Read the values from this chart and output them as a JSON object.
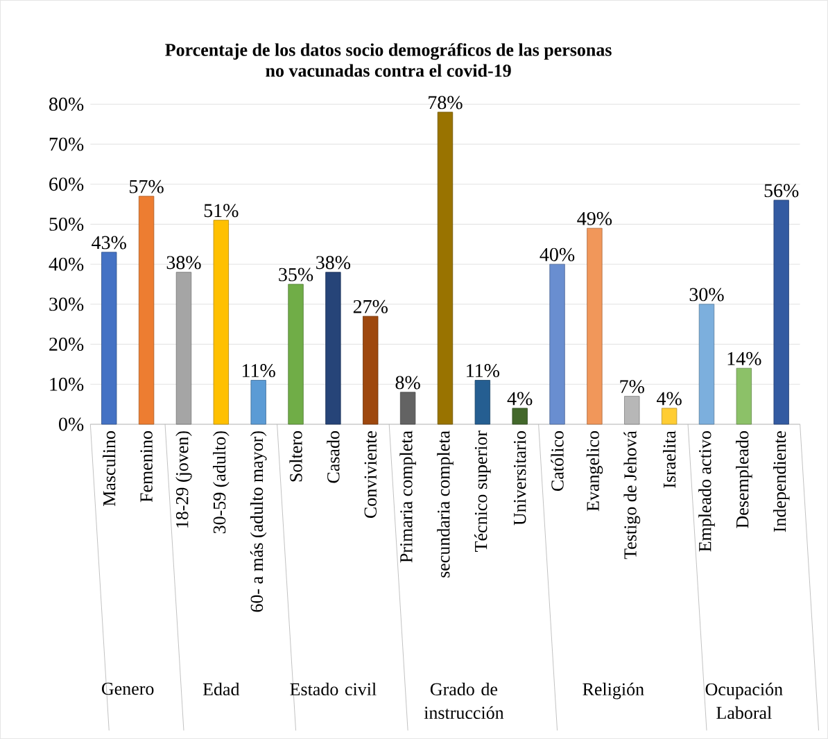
{
  "chart_data": {
    "type": "bar",
    "title": "Porcentaje de los datos socio demográficos de las personas no vacunadas contra el covid-19",
    "categories": [
      "Masculino",
      "Femenino",
      "18-29 (joven)",
      "30-59 (adulto)",
      "60- a más (adulto mayor)",
      "Soltero",
      "Casado",
      "Conviviente",
      "Primaria completa",
      "secundaria completa",
      "Técnico superior",
      "Universitario",
      "Católico",
      "Evangelico",
      "Testigo de Jehová",
      "Israelita",
      "Empleado activo",
      "Desempleado",
      "Independiente"
    ],
    "values": [
      43,
      57,
      38,
      51,
      11,
      35,
      38,
      27,
      8,
      78,
      11,
      4,
      40,
      49,
      7,
      4,
      30,
      14,
      56
    ],
    "value_labels": [
      "43%",
      "57%",
      "38%",
      "51%",
      "11%",
      "35%",
      "38%",
      "27%",
      "8%",
      "78%",
      "11%",
      "4%",
      "40%",
      "49%",
      "7%",
      "4%",
      "30%",
      "14%",
      "56%"
    ],
    "colors": [
      "#4472c4",
      "#ed7d31",
      "#a5a5a5",
      "#ffc000",
      "#5b9bd5",
      "#70ad47",
      "#264478",
      "#9e480e",
      "#636363",
      "#997300",
      "#255e91",
      "#43682b",
      "#698ed0",
      "#f1975a",
      "#b7b7b7",
      "#ffcd33",
      "#7cafdd",
      "#8cc168",
      "#335aa1"
    ],
    "ylim": [
      0,
      80
    ],
    "yticks": [
      {
        "value": 0,
        "label": "0%"
      },
      {
        "value": 10,
        "label": "10%"
      },
      {
        "value": 20,
        "label": "20%"
      },
      {
        "value": 30,
        "label": "30%"
      },
      {
        "value": 40,
        "label": "40%"
      },
      {
        "value": 50,
        "label": "50%"
      },
      {
        "value": 60,
        "label": "60%"
      },
      {
        "value": 70,
        "label": "70%"
      },
      {
        "value": 80,
        "label": "80%"
      }
    ],
    "grid": "y",
    "annotations": [
      "Genero",
      "Edad",
      "Estado civil",
      "Grado de instrucción",
      "Religión",
      "Ocupación Laboral"
    ]
  }
}
